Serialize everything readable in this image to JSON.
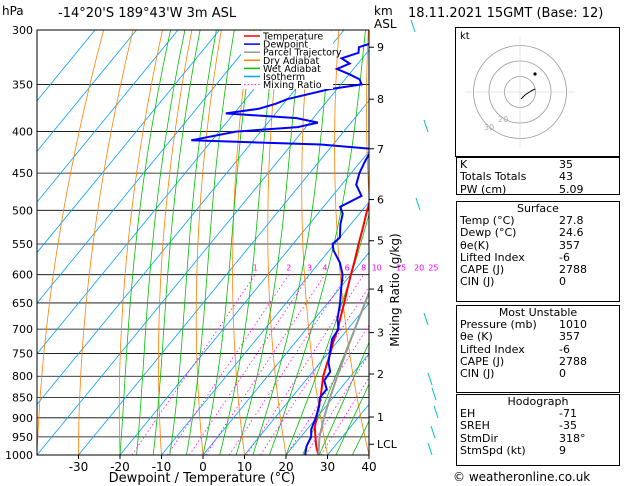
{
  "header": {
    "hpa_label": "hPa",
    "location": "-14°20'S  189°43'W  3m  ASL",
    "km_label": "km",
    "asl_label": "ASL",
    "datetime": "18.11.2021  15GMT  (Base: 12)"
  },
  "legend": [
    {
      "label": "Temperature",
      "color": "#ff0000"
    },
    {
      "label": "Dewpoint",
      "color": "#0000ff"
    },
    {
      "label": "Parcel Trajectory",
      "color": "#999999"
    },
    {
      "label": "Dry Adiabat",
      "color": "#ff8000"
    },
    {
      "label": "Wet Adiabat",
      "color": "#00c000"
    },
    {
      "label": "Isotherm",
      "color": "#00a0ff"
    },
    {
      "label": "Mixing Ratio",
      "color": "#ff00ff"
    }
  ],
  "chart_data": {
    "type": "line",
    "xlabel": "Dewpoint / Temperature (°C)",
    "ylabel_right": "Mixing Ratio (g/kg)",
    "pressure_ticks": [
      300,
      350,
      400,
      450,
      500,
      550,
      600,
      650,
      700,
      750,
      800,
      850,
      900,
      950,
      1000
    ],
    "temp_ticks": [
      -30,
      -20,
      -10,
      0,
      10,
      20,
      30,
      40
    ],
    "xlim": [
      -40,
      40
    ],
    "ylim": [
      1000,
      300
    ],
    "km_ticks": [
      {
        "label": "9",
        "p": 315
      },
      {
        "label": "8",
        "p": 365
      },
      {
        "label": "7",
        "p": 420
      },
      {
        "label": "6",
        "p": 485
      },
      {
        "label": "5",
        "p": 545
      },
      {
        "label": "4",
        "p": 625
      },
      {
        "label": "3",
        "p": 707
      },
      {
        "label": "2",
        "p": 795
      },
      {
        "label": "1",
        "p": 898
      },
      {
        "label": "LCL",
        "p": 970
      }
    ],
    "mixing_ratio_labels": [
      "1",
      "2",
      "3",
      "4",
      "6",
      "8",
      "10",
      "15",
      "20",
      "25"
    ],
    "mixing_ratio_values": [
      1,
      2,
      3,
      4,
      6,
      8,
      10,
      15,
      20,
      25
    ],
    "series": [
      {
        "name": "Temperature",
        "color": "#ff0000",
        "p": [
          1000,
          975,
          950,
          925,
          900,
          875,
          850,
          825,
          800,
          775,
          750,
          725,
          700,
          675,
          650,
          625,
          600,
          575,
          550,
          525,
          500,
          475,
          450,
          425,
          400,
          375,
          350,
          325,
          300
        ],
        "t": [
          27.8,
          25.5,
          23.5,
          21.5,
          20.0,
          18.5,
          17.0,
          15.2,
          13.4,
          12.0,
          10.6,
          9.0,
          7.6,
          5.8,
          4.0,
          2.0,
          0.0,
          -2.0,
          -4.2,
          -6.4,
          -8.8,
          -11.0,
          -13.8,
          -17.2,
          -19.8,
          -24.0,
          -28.0,
          -32.5,
          -38.0
        ]
      },
      {
        "name": "Dewpoint",
        "color": "#0000ff",
        "p": [
          1000,
          975,
          950,
          930,
          900,
          870,
          850,
          830,
          810,
          790,
          770,
          750,
          720,
          700,
          680,
          650,
          620,
          600,
          580,
          560,
          550,
          540,
          520,
          505,
          495,
          480,
          465,
          450,
          435,
          425,
          420,
          415,
          410,
          400,
          395,
          390,
          385,
          380,
          375,
          370,
          365,
          355,
          350,
          345,
          340,
          335,
          330,
          325,
          320,
          315,
          310,
          305,
          300
        ],
        "t": [
          24.6,
          23.2,
          22.5,
          21.0,
          19.8,
          18.3,
          16.8,
          16.8,
          14.5,
          14.2,
          12.0,
          10.5,
          8.2,
          7.8,
          5.5,
          3.0,
          0.0,
          -2.0,
          -5.0,
          -9.0,
          -10.5,
          -10.0,
          -12.5,
          -14.0,
          -16.0,
          -13.0,
          -16.5,
          -18.0,
          -19.0,
          -19.5,
          -20.0,
          -33.0,
          -65.0,
          -56.0,
          -42.0,
          -38.0,
          -44.0,
          -62.0,
          -55.0,
          -52.0,
          -50.0,
          -42.0,
          -35.0,
          -36.5,
          -40.0,
          -44.0,
          -42.0,
          -45.0,
          -42.0,
          -43.0,
          -40.0,
          -41.0,
          -39.0
        ]
      },
      {
        "name": "Parcel Trajectory",
        "color": "#999999",
        "p": [
          1000,
          950,
          900,
          850,
          800,
          750,
          700,
          650,
          600,
          550,
          500,
          450,
          400,
          350,
          300
        ],
        "t": [
          27.8,
          24.5,
          21.8,
          19.3,
          16.8,
          14.3,
          11.7,
          9.0,
          6.2,
          3.1,
          -0.5,
          -4.5,
          -9.5,
          -15.8,
          -24.0
        ]
      }
    ]
  },
  "hodograph": {
    "label": "kt",
    "rings": [
      10,
      20,
      30
    ],
    "ring_labels": [
      "20",
      "30"
    ]
  },
  "indices": [
    {
      "label": "K",
      "value": "35"
    },
    {
      "label": "Totals Totals",
      "value": "43"
    },
    {
      "label": "PW (cm)",
      "value": "5.09"
    }
  ],
  "surface": {
    "title": "Surface",
    "rows": [
      {
        "label": "Temp (°C)",
        "value": "27.8"
      },
      {
        "label": "Dewp (°C)",
        "value": "24.6"
      },
      {
        "label": "θe(K)",
        "value": "357"
      },
      {
        "label": "Lifted Index",
        "value": "-6"
      },
      {
        "label": "CAPE (J)",
        "value": "2788"
      },
      {
        "label": "CIN (J)",
        "value": "0"
      }
    ]
  },
  "unstable": {
    "title": "Most Unstable",
    "rows": [
      {
        "label": "Pressure (mb)",
        "value": "1010"
      },
      {
        "label": "θe (K)",
        "value": "357"
      },
      {
        "label": "Lifted Index",
        "value": "-6"
      },
      {
        "label": "CAPE (J)",
        "value": "2788"
      },
      {
        "label": "CIN (J)",
        "value": "0"
      }
    ]
  },
  "hodo_table": {
    "title": "Hodograph",
    "rows": [
      {
        "label": "EH",
        "value": "-71"
      },
      {
        "label": "SREH",
        "value": "-35"
      },
      {
        "label": "StmDir",
        "value": "318°"
      },
      {
        "label": "StmSpd (kt)",
        "value": "9"
      }
    ]
  },
  "copyright": "© weatheronline.co.uk"
}
